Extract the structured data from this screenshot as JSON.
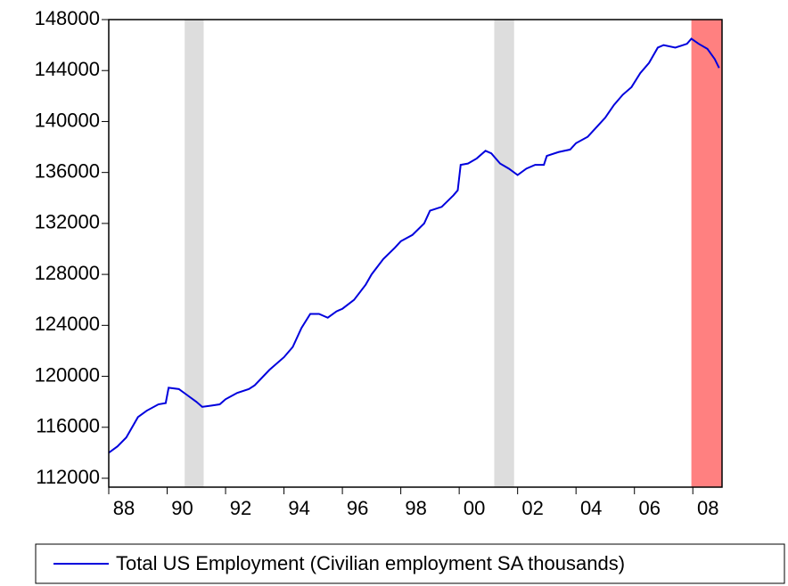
{
  "chart_data": {
    "type": "line",
    "x": [
      1988.0,
      1988.3,
      1988.6,
      1989.0,
      1989.3,
      1989.7,
      1989.95,
      1990.05,
      1990.4,
      1990.7,
      1991.0,
      1991.2,
      1991.5,
      1991.8,
      1992.0,
      1992.4,
      1992.8,
      1993.0,
      1993.5,
      1994.0,
      1994.3,
      1994.6,
      1994.9,
      1995.2,
      1995.5,
      1995.8,
      1996.0,
      1996.4,
      1996.8,
      1997.0,
      1997.4,
      1997.8,
      1998.0,
      1998.4,
      1998.8,
      1999.0,
      1999.4,
      1999.8,
      1999.95,
      2000.05,
      2000.3,
      2000.6,
      2000.9,
      2001.1,
      2001.4,
      2001.7,
      2002.0,
      2002.3,
      2002.6,
      2002.9,
      2003.0,
      2003.4,
      2003.8,
      2004.0,
      2004.4,
      2004.8,
      2005.0,
      2005.3,
      2005.6,
      2005.9,
      2006.2,
      2006.5,
      2006.8,
      2007.0,
      2007.4,
      2007.8,
      2007.95,
      2008.2,
      2008.5,
      2008.75,
      2008.9
    ],
    "series": [
      {
        "name": "Total US Employment (Civilian employment SA thousands)",
        "color": "#0000dd",
        "values": [
          114000,
          114500,
          115200,
          116800,
          117300,
          117800,
          117900,
          119100,
          119000,
          118500,
          118000,
          117600,
          117700,
          117800,
          118200,
          118700,
          119000,
          119300,
          120500,
          121500,
          122300,
          123800,
          124900,
          124900,
          124600,
          125100,
          125300,
          126000,
          127200,
          128000,
          129200,
          130100,
          130600,
          131100,
          132000,
          133000,
          133300,
          134200,
          134600,
          136600,
          136700,
          137100,
          137700,
          137500,
          136700,
          136300,
          135800,
          136300,
          136600,
          136600,
          137300,
          137600,
          137800,
          138300,
          138800,
          139800,
          140300,
          141300,
          142100,
          142700,
          143800,
          144600,
          145800,
          146000,
          145800,
          146100,
          146500,
          146100,
          145700,
          144900,
          144200
        ]
      }
    ],
    "xlim": [
      1988,
      2009
    ],
    "xticks": [
      {
        "value": 1988,
        "label": "88"
      },
      {
        "value": 1990,
        "label": "90"
      },
      {
        "value": 1992,
        "label": "92"
      },
      {
        "value": 1994,
        "label": "94"
      },
      {
        "value": 1996,
        "label": "96"
      },
      {
        "value": 1998,
        "label": "98"
      },
      {
        "value": 2000,
        "label": "00"
      },
      {
        "value": 2002,
        "label": "02"
      },
      {
        "value": 2004,
        "label": "04"
      },
      {
        "value": 2006,
        "label": "06"
      },
      {
        "value": 2008,
        "label": "08"
      }
    ],
    "ylim": [
      111300,
      148000
    ],
    "yticks": [
      112000,
      116000,
      120000,
      124000,
      128000,
      132000,
      136000,
      140000,
      144000,
      148000
    ],
    "shaded_regions": [
      {
        "start": 1990.6,
        "end": 1991.25,
        "color": "#dddddd"
      },
      {
        "start": 2001.2,
        "end": 2001.88,
        "color": "#dddddd"
      },
      {
        "start": 2007.95,
        "end": 2009,
        "color": "#ff8080"
      }
    ],
    "legend": "bottom"
  }
}
